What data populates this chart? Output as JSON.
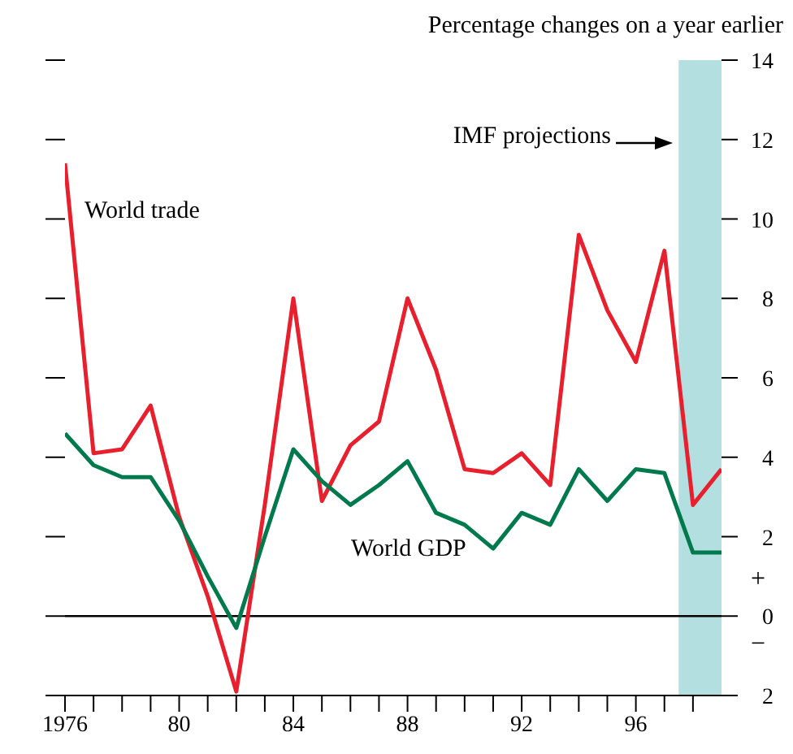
{
  "chart_data": {
    "type": "line",
    "title": "Percentage changes on a year earlier",
    "x": [
      1976,
      1977,
      1978,
      1979,
      1980,
      1981,
      1982,
      1983,
      1984,
      1985,
      1986,
      1987,
      1988,
      1989,
      1990,
      1991,
      1992,
      1993,
      1994,
      1995,
      1996,
      1997,
      1998,
      1999
    ],
    "series": [
      {
        "name": "World trade",
        "color": "#e8202e",
        "values": [
          11.4,
          4.1,
          4.2,
          5.3,
          2.5,
          0.5,
          -1.9,
          2.8,
          8.0,
          2.9,
          4.3,
          4.9,
          8.0,
          6.2,
          3.7,
          3.6,
          4.1,
          3.3,
          9.6,
          7.7,
          6.4,
          9.2,
          2.8,
          3.7
        ]
      },
      {
        "name": "World GDP",
        "color": "#007a4d",
        "values": [
          4.6,
          3.8,
          3.5,
          3.5,
          2.4,
          1.0,
          -0.3,
          2.0,
          4.2,
          3.4,
          2.8,
          3.3,
          3.9,
          2.6,
          2.3,
          1.7,
          2.6,
          2.3,
          3.7,
          2.9,
          3.7,
          3.6,
          1.6,
          1.6
        ]
      }
    ],
    "xlim": [
      1976,
      1999
    ],
    "xticks": [
      1976,
      {
        "value": 1977,
        "label": null
      },
      {
        "value": 1978,
        "label": null
      },
      {
        "value": 1979,
        "label": null
      },
      {
        "value": 1980,
        "label": "80"
      },
      {
        "value": 1981,
        "label": null
      },
      {
        "value": 1982,
        "label": null
      },
      {
        "value": 1983,
        "label": null
      },
      {
        "value": 1984,
        "label": "84"
      },
      {
        "value": 1985,
        "label": null
      },
      {
        "value": 1986,
        "label": null
      },
      {
        "value": 1987,
        "label": null
      },
      {
        "value": 1988,
        "label": "88"
      },
      {
        "value": 1989,
        "label": null
      },
      {
        "value": 1990,
        "label": null
      },
      {
        "value": 1991,
        "label": null
      },
      {
        "value": 1992,
        "label": "92"
      },
      {
        "value": 1993,
        "label": null
      },
      {
        "value": 1994,
        "label": null
      },
      {
        "value": 1995,
        "label": null
      },
      {
        "value": 1996,
        "label": "96"
      },
      {
        "value": 1997,
        "label": null
      },
      {
        "value": 1998,
        "label": null
      }
    ],
    "ylim": [
      -2,
      14
    ],
    "yticks": [
      {
        "value": -2,
        "label": "2"
      },
      0,
      2,
      4,
      6,
      8,
      10,
      12,
      14
    ],
    "ref_lines": [
      {
        "axis": "y",
        "value": 0,
        "color": "#000000"
      }
    ],
    "bands": [
      {
        "axis": "x",
        "from": 1997.5,
        "to": 1999,
        "label": "IMF projections",
        "color": "#b3dfe0"
      }
    ],
    "annotations": [
      "+",
      "−"
    ],
    "grid": false,
    "legend": false,
    "marker": "none",
    "line_style": "solid"
  }
}
